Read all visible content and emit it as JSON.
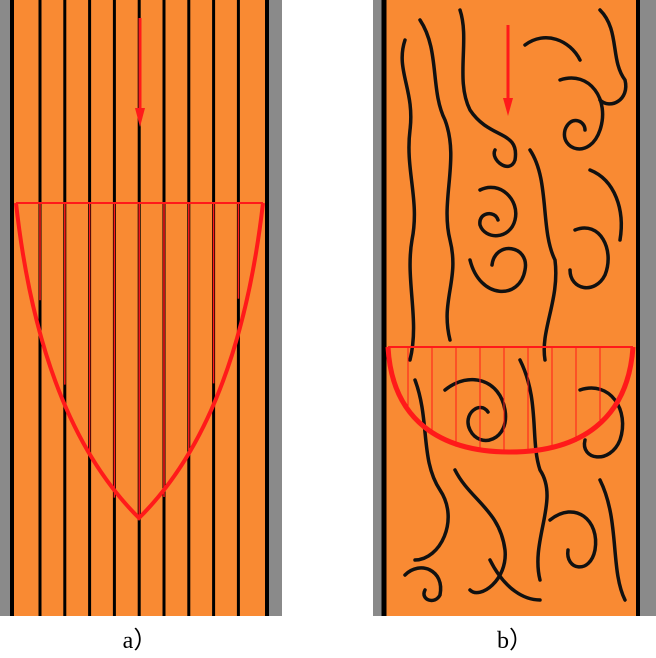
{
  "labels": {
    "a": "a）",
    "b": "b）"
  }
}
